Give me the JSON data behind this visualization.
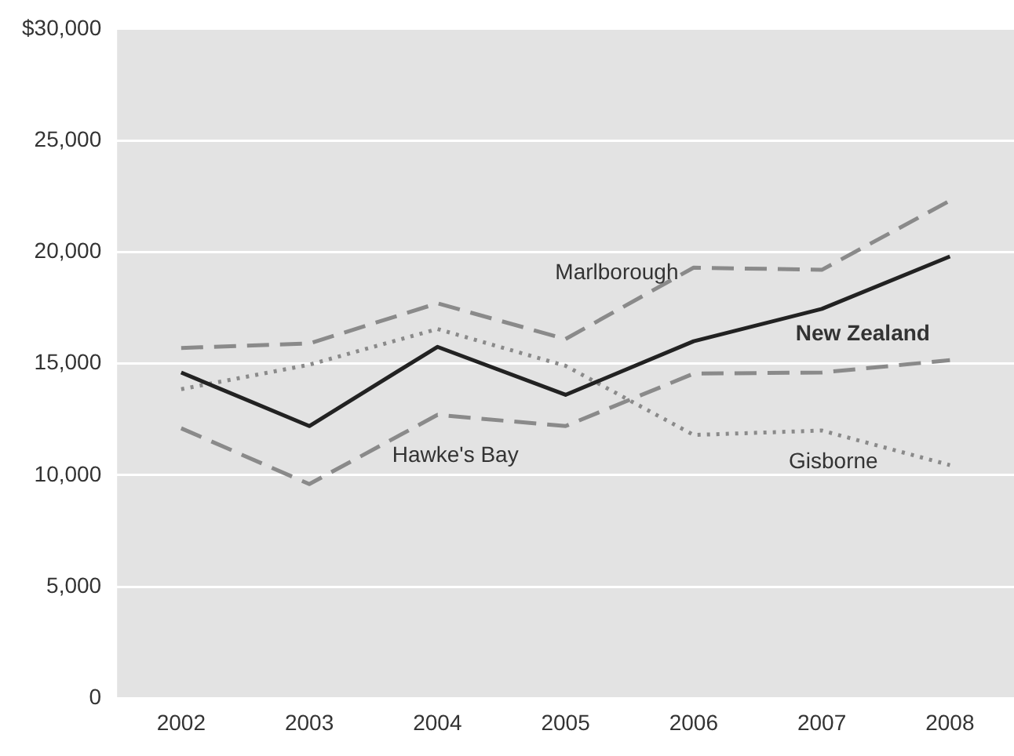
{
  "chart_data": {
    "type": "line",
    "categories": [
      "2002",
      "2003",
      "2004",
      "2005",
      "2006",
      "2007",
      "2008"
    ],
    "series": [
      {
        "name": "Marlborough",
        "color": "#8a8a8a",
        "line_style": "dashed",
        "values": [
          15700,
          15900,
          17700,
          16100,
          19300,
          19200,
          22300
        ]
      },
      {
        "name": "New Zealand",
        "color": "#222222",
        "line_style": "solid",
        "values": [
          14600,
          12200,
          15750,
          13600,
          16000,
          17450,
          19800
        ]
      },
      {
        "name": "Hawke's Bay",
        "color": "#8a8a8a",
        "line_style": "dashed",
        "values": [
          12100,
          9600,
          12700,
          12200,
          14550,
          14600,
          15150
        ]
      },
      {
        "name": "Gisborne",
        "color": "#8a8a8a",
        "line_style": "dotted",
        "values": [
          13850,
          14950,
          16550,
          14900,
          11800,
          12000,
          10450
        ]
      }
    ],
    "ylim": [
      0,
      30000
    ],
    "yticks": [
      {
        "value": 0,
        "label": "0"
      },
      {
        "value": 5000,
        "label": "5,000"
      },
      {
        "value": 10000,
        "label": "10,000"
      },
      {
        "value": 15000,
        "label": "15,000"
      },
      {
        "value": 20000,
        "label": "20,000"
      },
      {
        "value": 25000,
        "label": "25,000"
      },
      {
        "value": 30000,
        "label": "$30,000"
      }
    ],
    "grid": "y",
    "legend": false,
    "marker": "none"
  }
}
